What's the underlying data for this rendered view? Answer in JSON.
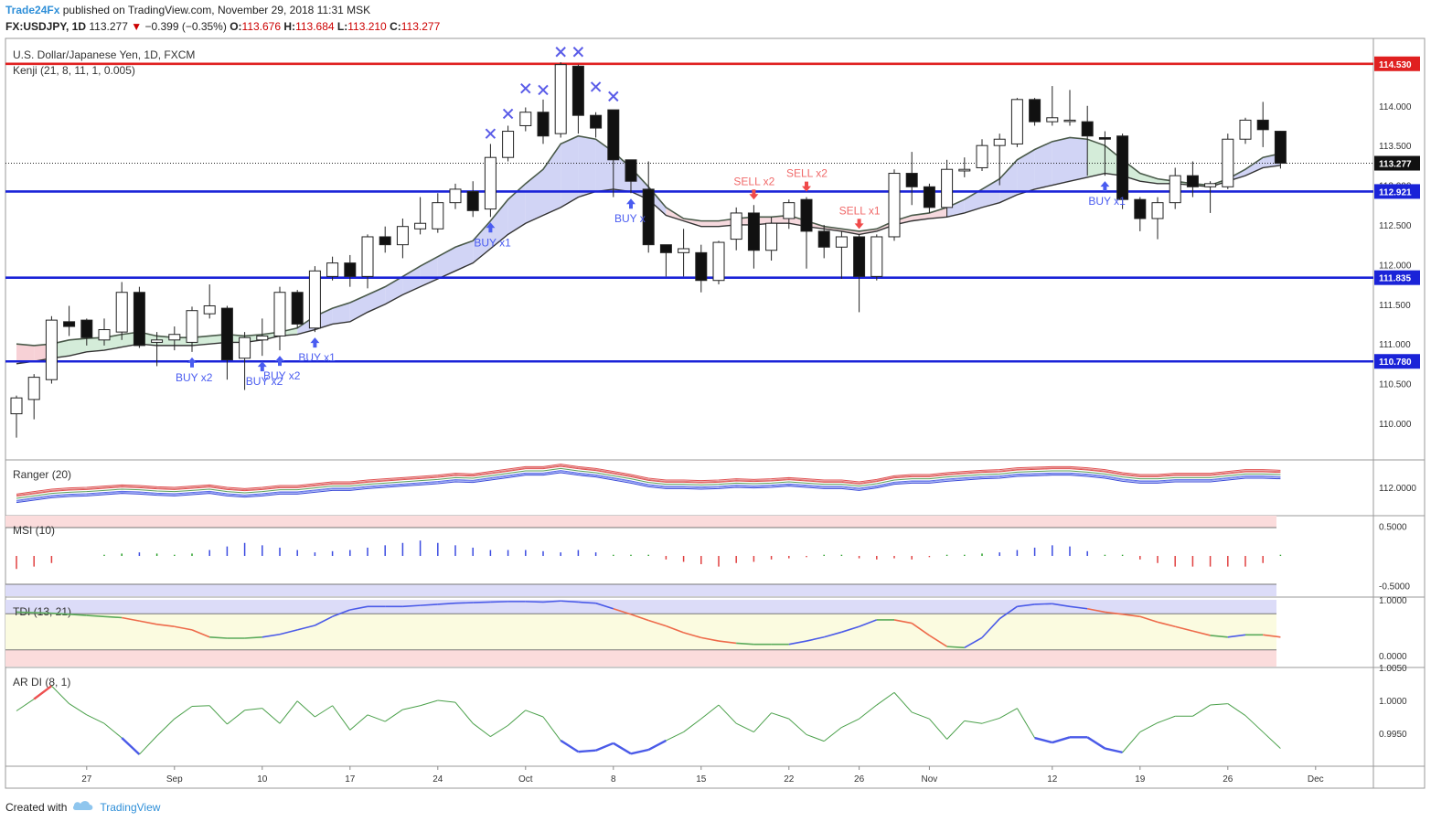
{
  "header": {
    "publisher": "Trade24Fx",
    "published_text": "published on TradingView.com, November 29, 2018 11:31 MSK",
    "symbol": "FX:USDJPY, 1D",
    "last": "113.277",
    "change": "−0.399 (−0.35%)",
    "open_label": "O:",
    "open": "113.676",
    "high_label": "H:",
    "high": "113.684",
    "low_label": "L:",
    "low": "113.210",
    "close_label": "C:",
    "close": "113.277"
  },
  "footer": {
    "created_with": "Created with",
    "brand": "TradingView"
  },
  "chart_data": [
    {
      "type": "candlestick",
      "title": "U.S. Dollar/Japanese Yen, 1D, FXCM",
      "indicator": "Kenji (21, 8, 11, 1, 0.005)",
      "ylim": [
        109.55,
        114.85
      ],
      "y_ticks": [
        "114.000",
        "113.500",
        "113.000",
        "112.500",
        "112.000",
        "111.500",
        "111.000",
        "110.500",
        "110.000"
      ],
      "x_ticks": [
        "27",
        "Sep",
        "10",
        "17",
        "24",
        "Oct",
        "8",
        "15",
        "22",
        "26",
        "Nov",
        "12",
        "19",
        "26",
        "Dec"
      ],
      "current_price": "113.277",
      "levels": [
        {
          "value": 114.53,
          "label": "114.530",
          "color": "#e02020"
        },
        {
          "value": 112.921,
          "label": "112.921",
          "color": "#1a23d8"
        },
        {
          "value": 111.835,
          "label": "111.835",
          "color": "#1a23d8"
        },
        {
          "value": 110.78,
          "label": "110.780",
          "color": "#1a23d8"
        }
      ],
      "candles": [
        [
          110.12,
          110.32,
          109.82,
          110.35
        ],
        [
          110.3,
          110.58,
          110.05,
          110.62
        ],
        [
          110.55,
          111.3,
          110.5,
          111.35
        ],
        [
          111.28,
          111.22,
          111.1,
          111.48
        ],
        [
          111.3,
          111.08,
          110.98,
          111.32
        ],
        [
          111.05,
          111.18,
          110.98,
          111.32
        ],
        [
          111.15,
          111.65,
          111.05,
          111.78
        ],
        [
          111.65,
          110.98,
          110.95,
          111.72
        ],
        [
          111.02,
          111.05,
          110.72,
          111.15
        ],
        [
          111.05,
          111.12,
          110.92,
          111.22
        ],
        [
          111.02,
          111.42,
          110.9,
          111.47
        ],
        [
          111.38,
          111.48,
          111.32,
          111.75
        ],
        [
          111.45,
          110.8,
          110.55,
          111.48
        ],
        [
          110.82,
          111.08,
          110.42,
          111.15
        ],
        [
          111.05,
          111.1,
          110.85,
          111.32
        ],
        [
          111.1,
          111.65,
          110.92,
          111.72
        ],
        [
          111.65,
          111.25,
          111.2,
          111.68
        ],
        [
          111.2,
          111.92,
          111.15,
          111.98
        ],
        [
          111.85,
          112.02,
          111.8,
          112.1
        ],
        [
          112.02,
          111.85,
          111.72,
          112.12
        ],
        [
          111.85,
          112.35,
          111.7,
          112.38
        ],
        [
          112.35,
          112.25,
          112.15,
          112.48
        ],
        [
          112.25,
          112.48,
          112.08,
          112.58
        ],
        [
          112.45,
          112.52,
          112.38,
          112.85
        ],
        [
          112.45,
          112.78,
          112.4,
          112.9
        ],
        [
          112.78,
          112.95,
          112.7,
          113.02
        ],
        [
          112.92,
          112.68,
          112.6,
          113.05
        ],
        [
          112.7,
          113.35,
          112.6,
          113.52
        ],
        [
          113.35,
          113.68,
          113.3,
          113.75
        ],
        [
          113.75,
          113.92,
          113.68,
          113.98
        ],
        [
          113.92,
          113.62,
          113.52,
          114.08
        ],
        [
          113.65,
          114.52,
          113.6,
          114.55
        ],
        [
          114.5,
          113.88,
          113.65,
          114.52
        ],
        [
          113.88,
          113.72,
          113.6,
          113.92
        ],
        [
          113.95,
          113.32,
          112.85,
          113.95
        ],
        [
          113.32,
          113.05,
          112.9,
          113.3
        ],
        [
          112.95,
          112.25,
          112.15,
          113.3
        ],
        [
          112.25,
          112.15,
          111.85,
          112.25
        ],
        [
          112.15,
          112.2,
          111.85,
          112.45
        ],
        [
          112.15,
          111.8,
          111.65,
          112.25
        ],
        [
          111.8,
          112.28,
          111.75,
          112.3
        ],
        [
          112.32,
          112.65,
          112.18,
          112.72
        ],
        [
          112.65,
          112.18,
          111.95,
          112.75
        ],
        [
          112.18,
          112.52,
          112.05,
          112.6
        ],
        [
          112.58,
          112.78,
          112.45,
          112.82
        ],
        [
          112.82,
          112.42,
          111.95,
          112.85
        ],
        [
          112.42,
          112.22,
          112.08,
          112.5
        ],
        [
          112.22,
          112.35,
          111.82,
          112.42
        ],
        [
          112.35,
          111.85,
          111.4,
          112.38
        ],
        [
          111.85,
          112.35,
          111.8,
          112.38
        ],
        [
          112.35,
          113.15,
          112.3,
          113.2
        ],
        [
          113.15,
          112.98,
          112.75,
          113.42
        ],
        [
          112.98,
          112.72,
          112.65,
          113.02
        ],
        [
          112.72,
          113.2,
          112.6,
          113.32
        ],
        [
          113.18,
          113.2,
          113.1,
          113.35
        ],
        [
          113.22,
          113.5,
          113.18,
          113.58
        ],
        [
          113.5,
          113.58,
          113.0,
          113.65
        ],
        [
          113.52,
          114.08,
          113.48,
          114.1
        ],
        [
          114.08,
          113.8,
          113.75,
          114.1
        ],
        [
          113.8,
          113.85,
          113.75,
          114.25
        ],
        [
          113.82,
          113.82,
          113.75,
          114.2
        ],
        [
          113.8,
          113.62,
          113.12,
          114.0
        ],
        [
          113.6,
          113.58,
          113.12,
          113.68
        ],
        [
          113.62,
          112.82,
          112.7,
          113.65
        ],
        [
          112.82,
          112.58,
          112.42,
          112.85
        ],
        [
          112.58,
          112.78,
          112.32,
          112.85
        ],
        [
          112.78,
          113.12,
          112.7,
          113.22
        ],
        [
          113.12,
          112.98,
          112.85,
          113.3
        ],
        [
          112.98,
          113.02,
          112.65,
          113.05
        ],
        [
          112.98,
          113.58,
          112.95,
          113.65
        ],
        [
          113.58,
          113.82,
          113.52,
          113.85
        ],
        [
          113.82,
          113.7,
          113.48,
          114.05
        ],
        [
          113.68,
          113.277,
          113.21,
          113.684
        ]
      ],
      "kenji_band": {
        "band_values": [
          [
            111.0,
            110.75
          ],
          [
            110.98,
            110.78
          ],
          [
            111.0,
            110.82
          ],
          [
            111.05,
            110.85
          ],
          [
            111.07,
            110.9
          ],
          [
            111.08,
            110.92
          ],
          [
            111.12,
            110.96
          ],
          [
            111.15,
            111.0
          ],
          [
            111.1,
            110.98
          ],
          [
            111.08,
            110.98
          ],
          [
            111.08,
            110.98
          ],
          [
            111.1,
            111.0
          ],
          [
            111.12,
            111.02
          ],
          [
            111.1,
            111.02
          ],
          [
            111.12,
            111.05
          ],
          [
            111.15,
            111.1
          ],
          [
            111.2,
            111.12
          ],
          [
            111.35,
            111.18
          ],
          [
            111.45,
            111.25
          ],
          [
            111.52,
            111.28
          ],
          [
            111.62,
            111.4
          ],
          [
            111.72,
            111.5
          ],
          [
            111.85,
            111.62
          ],
          [
            111.98,
            111.72
          ],
          [
            112.1,
            111.82
          ],
          [
            112.22,
            111.92
          ],
          [
            112.3,
            112.02
          ],
          [
            112.55,
            112.2
          ],
          [
            112.82,
            112.38
          ],
          [
            113.02,
            112.52
          ],
          [
            113.2,
            112.62
          ],
          [
            113.52,
            112.72
          ],
          [
            113.62,
            112.85
          ],
          [
            113.58,
            112.92
          ],
          [
            113.42,
            112.95
          ],
          [
            113.22,
            112.92
          ],
          [
            112.98,
            112.82
          ],
          [
            112.72,
            112.62
          ],
          [
            112.58,
            112.55
          ],
          [
            112.55,
            112.48
          ],
          [
            112.55,
            112.48
          ],
          [
            112.58,
            112.5
          ],
          [
            112.6,
            112.5
          ],
          [
            112.6,
            112.52
          ],
          [
            112.62,
            112.52
          ],
          [
            112.55,
            112.48
          ],
          [
            112.48,
            112.45
          ],
          [
            112.45,
            112.42
          ],
          [
            112.42,
            112.38
          ],
          [
            112.45,
            112.42
          ],
          [
            112.55,
            112.5
          ],
          [
            112.62,
            112.55
          ],
          [
            112.65,
            112.58
          ],
          [
            112.72,
            112.6
          ],
          [
            112.82,
            112.65
          ],
          [
            112.95,
            112.72
          ],
          [
            113.08,
            112.78
          ],
          [
            113.32,
            112.88
          ],
          [
            113.45,
            112.95
          ],
          [
            113.55,
            113.0
          ],
          [
            113.6,
            113.05
          ],
          [
            113.58,
            113.1
          ],
          [
            113.5,
            113.15
          ],
          [
            113.32,
            113.12
          ],
          [
            113.15,
            113.05
          ],
          [
            113.08,
            113.02
          ],
          [
            113.05,
            113.02
          ],
          [
            113.02,
            113.0
          ],
          [
            113.0,
            112.98
          ],
          [
            113.08,
            113.05
          ],
          [
            113.2,
            113.12
          ],
          [
            113.35,
            113.22
          ],
          [
            113.4,
            113.25
          ]
        ]
      },
      "signals": [
        {
          "bar": 10,
          "label": "BUY x2",
          "side": "buy"
        },
        {
          "bar": 14,
          "label": "BUY x2",
          "side": "buy"
        },
        {
          "bar": 15,
          "label": "BUY x2",
          "side": "buy"
        },
        {
          "bar": 17,
          "label": "BUY x1",
          "side": "buy"
        },
        {
          "bar": 27,
          "label": "BUY x1",
          "side": "buy"
        },
        {
          "bar": 35,
          "label": "BUY x",
          "side": "buy"
        },
        {
          "bar": 42,
          "label": "SELL x2",
          "side": "sell"
        },
        {
          "bar": 45,
          "label": "SELL x2",
          "side": "sell"
        },
        {
          "bar": 48,
          "label": "SELL x1",
          "side": "sell"
        },
        {
          "bar": 62,
          "label": "BUY x1",
          "side": "buy"
        }
      ],
      "x_marks": [
        {
          "bar": 27,
          "value": 113.65
        },
        {
          "bar": 28,
          "value": 113.9
        },
        {
          "bar": 29,
          "value": 114.22
        },
        {
          "bar": 30,
          "value": 114.2
        },
        {
          "bar": 31,
          "value": 114.68
        },
        {
          "bar": 32,
          "value": 114.68
        },
        {
          "bar": 33,
          "value": 114.24
        },
        {
          "bar": 34,
          "value": 114.12
        }
      ]
    },
    {
      "type": "line",
      "indicator": "Ranger (20)",
      "ylim": [
        111.55,
        112.45
      ],
      "y_ticks": [
        "112.0000"
      ],
      "series_values": [
        [
          111.82,
          111.86,
          111.9,
          111.92,
          111.93,
          111.95,
          111.97,
          111.96,
          111.94,
          111.93,
          111.95,
          111.97,
          111.93,
          111.91,
          111.93,
          111.96,
          111.96,
          111.99,
          112.02,
          112.02,
          112.05,
          112.07,
          112.09,
          112.11,
          112.13,
          112.16,
          112.15,
          112.19,
          112.23,
          112.27,
          112.27,
          112.31,
          112.27,
          112.24,
          112.19,
          112.14,
          112.08,
          112.05,
          112.05,
          112.04,
          112.05,
          112.07,
          112.06,
          112.07,
          112.09,
          112.07,
          112.05,
          112.05,
          112.02,
          112.06,
          112.12,
          112.14,
          112.14,
          112.17,
          112.19,
          112.21,
          112.22,
          112.25,
          112.26,
          112.27,
          112.27,
          112.25,
          112.22,
          112.17,
          112.14,
          112.14,
          112.16,
          112.16,
          112.16,
          112.19,
          112.22,
          112.22,
          112.21
        ]
      ]
    },
    {
      "type": "bar",
      "indicator": "MSI (10)",
      "ylim": [
        -0.68,
        0.68
      ],
      "y_ticks": [
        "0.5000",
        "-0.5000"
      ],
      "values": [
        -0.22,
        -0.18,
        -0.12,
        0,
        0,
        0.02,
        0.04,
        0.06,
        0.04,
        0.02,
        0.04,
        0.1,
        0.16,
        0.22,
        0.18,
        0.14,
        0.1,
        0.06,
        0.08,
        0.1,
        0.14,
        0.18,
        0.22,
        0.26,
        0.22,
        0.18,
        0.14,
        0.1,
        0.1,
        0.1,
        0.08,
        0.06,
        0.1,
        0.06,
        0.02,
        0.02,
        0.02,
        -0.06,
        -0.1,
        -0.14,
        -0.18,
        -0.12,
        -0.1,
        -0.06,
        -0.04,
        -0.02,
        0.02,
        0.02,
        -0.04,
        -0.06,
        -0.04,
        -0.06,
        -0.02,
        0.02,
        0.02,
        0.04,
        0.06,
        0.1,
        0.14,
        0.18,
        0.16,
        0.08,
        0.02,
        0.02,
        -0.06,
        -0.12,
        -0.18,
        -0.18,
        -0.18,
        -0.18,
        -0.18,
        -0.12,
        0.02
      ]
    },
    {
      "type": "line",
      "indicator": "TDI (13, 21)",
      "ylim": [
        -0.2,
        1.05
      ],
      "y_ticks": [
        "1.0000",
        "0.0000"
      ],
      "values": [
        0.78,
        0.77,
        0.76,
        0.74,
        0.72,
        0.7,
        0.68,
        0.62,
        0.56,
        0.52,
        0.46,
        0.33,
        0.31,
        0.31,
        0.33,
        0.38,
        0.46,
        0.54,
        0.7,
        0.82,
        0.88,
        0.88,
        0.88,
        0.9,
        0.92,
        0.94,
        0.95,
        0.96,
        0.97,
        0.97,
        0.96,
        0.98,
        0.96,
        0.94,
        0.84,
        0.74,
        0.63,
        0.53,
        0.41,
        0.32,
        0.26,
        0.22,
        0.2,
        0.2,
        0.2,
        0.26,
        0.33,
        0.42,
        0.52,
        0.64,
        0.64,
        0.58,
        0.36,
        0.16,
        0.14,
        0.32,
        0.66,
        0.88,
        0.92,
        0.93,
        0.88,
        0.84,
        0.78,
        0.74,
        0.7,
        0.6,
        0.52,
        0.44,
        0.36,
        0.33,
        0.37,
        0.37,
        0.33
      ]
    },
    {
      "type": "line",
      "indicator": "AR DI (8, 1)",
      "ylim": [
        0.99,
        1.005
      ],
      "y_ticks": [
        "1.0050",
        "1.0000",
        "0.9950"
      ],
      "values": [
        0.9984,
        1.0002,
        1.0022,
        0.9995,
        0.9978,
        0.9965,
        0.9943,
        0.9918,
        0.9946,
        0.9972,
        0.9991,
        0.9992,
        0.9964,
        0.9985,
        0.9988,
        0.9965,
        0.9999,
        0.9975,
        0.9992,
        0.9955,
        0.9978,
        0.9968,
        0.9986,
        0.9992,
        1.0,
        0.9997,
        0.9965,
        0.9945,
        0.9962,
        0.9985,
        0.9975,
        0.9939,
        0.9922,
        0.9924,
        0.9935,
        0.9919,
        0.9925,
        0.9939,
        0.9952,
        0.9972,
        0.9993,
        0.9965,
        0.9952,
        0.9981,
        0.9972,
        0.9948,
        0.9938,
        0.9959,
        0.9972,
        0.9993,
        1.0012,
        0.9982,
        0.9972,
        0.9941,
        0.9969,
        0.9965,
        0.9973,
        0.9988,
        0.9943,
        0.9936,
        0.9944,
        0.9944,
        0.9927,
        0.9921,
        0.9952,
        0.9966,
        0.9976,
        0.9976,
        0.9993,
        0.9995,
        0.9977,
        0.9952,
        0.9927
      ]
    }
  ]
}
